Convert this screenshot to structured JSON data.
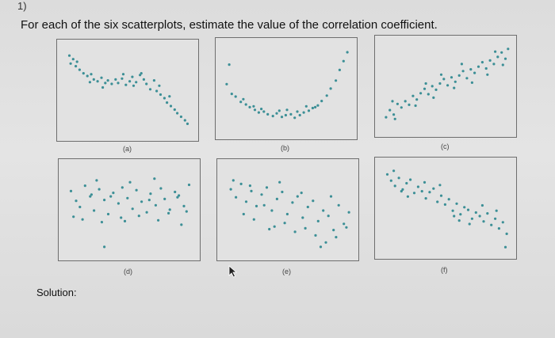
{
  "question": {
    "number": "1)",
    "prompt": "For each of the six scatterplots, estimate the value of the correlation coefficient."
  },
  "solution_label": "Solution:",
  "chart_data": [
    {
      "type": "scatter",
      "label": "(a)",
      "color": "#3c8f96",
      "xlim": [
        0,
        10
      ],
      "ylim": [
        0,
        10
      ],
      "x": [
        0.4,
        0.7,
        0.5,
        0.9,
        1.2,
        1.5,
        1.8,
        2.1,
        2.3,
        2.6,
        2.9,
        3.2,
        3.4,
        3.7,
        4.0,
        4.2,
        4.5,
        4.8,
        5.1,
        5.3,
        5.6,
        5.9,
        6.2,
        6.4,
        6.7,
        7.0,
        7.2,
        7.5,
        7.8,
        8.0,
        8.3,
        8.6,
        8.8,
        9.1,
        9.4,
        9.6,
        3.0,
        4.6,
        6.0,
        7.4,
        2.0,
        5.4,
        8.2,
        1.0
      ],
      "y": [
        9.0,
        8.6,
        8.1,
        7.8,
        7.4,
        7.0,
        6.7,
        6.9,
        6.3,
        6.1,
        6.5,
        5.9,
        6.2,
        5.8,
        6.3,
        5.9,
        6.4,
        5.7,
        6.1,
        6.6,
        6.0,
        6.8,
        6.3,
        5.8,
        5.2,
        6.2,
        5.0,
        4.6,
        4.2,
        3.7,
        3.3,
        2.9,
        2.5,
        2.1,
        1.7,
        1.3,
        5.4,
        6.9,
        7.0,
        5.6,
        6.0,
        5.6,
        4.4,
        8.3
      ]
    },
    {
      "type": "scatter",
      "label": "(b)",
      "color": "#3c8f96",
      "xlim": [
        0,
        10
      ],
      "ylim": [
        0,
        10
      ],
      "x": [
        0.3,
        0.7,
        1.0,
        1.4,
        1.8,
        2.1,
        2.5,
        2.8,
        3.2,
        3.5,
        3.9,
        4.2,
        4.6,
        4.9,
        5.3,
        5.6,
        6.0,
        6.3,
        6.7,
        7.0,
        7.4,
        7.7,
        8.1,
        8.4,
        8.8,
        9.1,
        9.4,
        9.7,
        1.6,
        3.0,
        4.4,
        5.8,
        7.2,
        2.4,
        5.0,
        6.5,
        0.5
      ],
      "y": [
        5.6,
        4.5,
        4.2,
        3.6,
        3.3,
        3.0,
        2.7,
        2.4,
        2.5,
        2.2,
        2.0,
        2.3,
        1.9,
        2.1,
        2.2,
        1.8,
        2.1,
        2.4,
        2.6,
        2.9,
        3.2,
        3.7,
        4.3,
        5.1,
        6.0,
        7.2,
        8.2,
        9.2,
        3.9,
        2.8,
        2.6,
        2.5,
        3.0,
        3.1,
        2.7,
        3.1,
        7.8
      ]
    },
    {
      "type": "scatter",
      "label": "(c)",
      "color": "#3c8f96",
      "xlim": [
        0,
        10
      ],
      "ylim": [
        0,
        10
      ],
      "x": [
        0.3,
        0.6,
        0.9,
        1.2,
        1.5,
        1.8,
        2.1,
        2.4,
        2.7,
        3.0,
        3.3,
        3.6,
        3.9,
        4.2,
        4.5,
        4.8,
        5.1,
        5.4,
        5.7,
        6.0,
        6.3,
        6.6,
        6.9,
        7.2,
        7.5,
        7.8,
        8.1,
        8.4,
        8.7,
        9.0,
        9.3,
        9.6,
        9.8,
        1.0,
        2.6,
        4.0,
        5.6,
        7.0,
        8.2,
        9.4,
        0.8,
        3.4,
        6.2,
        8.8,
        4.6
      ],
      "y": [
        1.6,
        2.4,
        1.9,
        3.1,
        2.7,
        3.4,
        3.0,
        4.0,
        3.6,
        4.3,
        4.8,
        4.2,
        5.1,
        4.7,
        5.4,
        5.9,
        5.2,
        6.1,
        5.6,
        6.3,
        6.8,
        6.0,
        7.0,
        6.6,
        7.3,
        7.8,
        7.1,
        8.0,
        7.6,
        8.4,
        8.9,
        8.2,
        9.3,
        1.4,
        2.9,
        3.8,
        4.9,
        5.5,
        6.4,
        7.5,
        3.4,
        5.4,
        7.6,
        9.0,
        6.4
      ]
    },
    {
      "type": "scatter",
      "label": "(d)",
      "color": "#3c8f96",
      "xlim": [
        0,
        10
      ],
      "ylim": [
        0,
        10
      ],
      "x": [
        0.4,
        0.8,
        1.1,
        1.5,
        1.9,
        2.2,
        2.6,
        3.0,
        3.3,
        3.7,
        4.1,
        4.4,
        4.8,
        5.2,
        5.5,
        5.9,
        6.3,
        6.6,
        7.0,
        7.4,
        7.7,
        8.1,
        8.5,
        8.8,
        9.2,
        9.6,
        0.6,
        1.3,
        2.0,
        2.8,
        3.5,
        4.3,
        5.0,
        5.7,
        6.5,
        7.2,
        8.0,
        8.7,
        9.4,
        2.4,
        4.6,
        6.9,
        3.0,
        9.0
      ],
      "y": [
        7.2,
        6.1,
        5.4,
        7.8,
        6.6,
        5.0,
        7.4,
        6.2,
        4.6,
        7.0,
        5.8,
        7.6,
        6.4,
        5.2,
        7.3,
        6.0,
        4.8,
        6.9,
        5.6,
        7.5,
        6.3,
        5.1,
        7.1,
        6.7,
        5.5,
        7.9,
        4.3,
        4.0,
        6.8,
        3.7,
        6.6,
        4.2,
        8.2,
        4.4,
        6.2,
        3.9,
        4.7,
        6.5,
        4.9,
        8.4,
        3.8,
        8.6,
        0.9,
        3.4
      ]
    },
    {
      "type": "scatter",
      "label": "(e)",
      "color": "#3c8f96",
      "xlim": [
        0,
        10
      ],
      "ylim": [
        0,
        10
      ],
      "x": [
        0.5,
        0.9,
        1.3,
        1.7,
        2.1,
        2.5,
        2.9,
        3.3,
        3.7,
        4.1,
        4.5,
        4.9,
        5.3,
        5.7,
        6.1,
        6.5,
        6.9,
        7.3,
        7.7,
        8.1,
        8.5,
        8.9,
        9.3,
        9.7,
        0.7,
        1.5,
        2.3,
        3.1,
        3.9,
        4.7,
        5.5,
        6.3,
        7.1,
        7.9,
        8.7,
        9.5,
        2.0,
        4.3,
        6.0,
        8.3,
        3.5,
        7.5
      ],
      "y": [
        7.4,
        6.5,
        8.0,
        6.0,
        7.2,
        5.5,
        6.8,
        7.6,
        5.0,
        6.3,
        7.1,
        4.6,
        5.9,
        6.6,
        4.2,
        5.4,
        6.1,
        3.8,
        5.0,
        4.4,
        2.8,
        5.6,
        3.5,
        4.8,
        8.4,
        4.6,
        4.0,
        5.6,
        3.2,
        3.6,
        2.6,
        3.0,
        2.2,
        1.4,
        2.0,
        3.1,
        7.8,
        8.2,
        7.0,
        6.6,
        2.9,
        0.9
      ]
    },
    {
      "type": "scatter",
      "label": "(f)",
      "color": "#3c8f96",
      "xlim": [
        0,
        10
      ],
      "ylim": [
        0,
        10
      ],
      "x": [
        0.4,
        0.7,
        1.0,
        1.3,
        1.6,
        1.9,
        2.2,
        2.5,
        2.8,
        3.1,
        3.4,
        3.7,
        4.0,
        4.3,
        4.6,
        4.9,
        5.2,
        5.5,
        5.8,
        6.1,
        6.4,
        6.7,
        7.0,
        7.3,
        7.6,
        7.9,
        8.2,
        8.5,
        8.8,
        9.1,
        9.4,
        9.7,
        0.9,
        2.0,
        3.3,
        4.5,
        5.6,
        6.8,
        7.8,
        8.9,
        9.6,
        1.5,
        6.0
      ],
      "y": [
        8.9,
        8.2,
        7.6,
        8.5,
        7.2,
        7.9,
        8.3,
        6.8,
        7.5,
        7.0,
        6.2,
        6.9,
        7.3,
        5.8,
        6.5,
        5.5,
        6.1,
        4.8,
        5.6,
        4.4,
        5.2,
        4.9,
        3.9,
        4.6,
        4.2,
        3.6,
        4.5,
        3.2,
        3.9,
        2.8,
        3.5,
        2.2,
        9.3,
        6.4,
        8.0,
        7.7,
        4.2,
        3.3,
        5.4,
        4.8,
        0.7,
        7.0,
        3.7
      ]
    }
  ]
}
